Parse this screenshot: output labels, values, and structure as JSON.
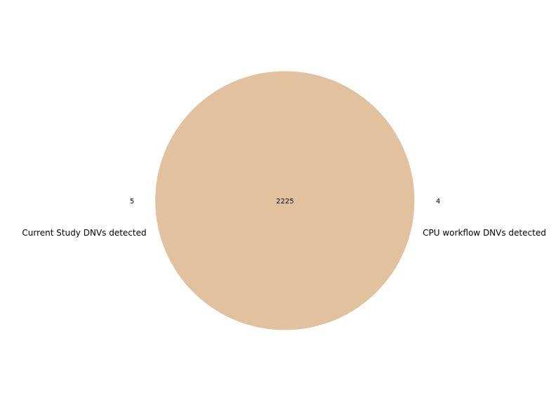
{
  "chart_data": {
    "type": "venn",
    "sets": [
      {
        "label": "Current Study DNVs detected",
        "only_count": "5"
      },
      {
        "label": "CPU workflow DNVs detected",
        "only_count": "4"
      }
    ],
    "intersection_count": "2225",
    "overlap_color": "#e0bc98"
  }
}
